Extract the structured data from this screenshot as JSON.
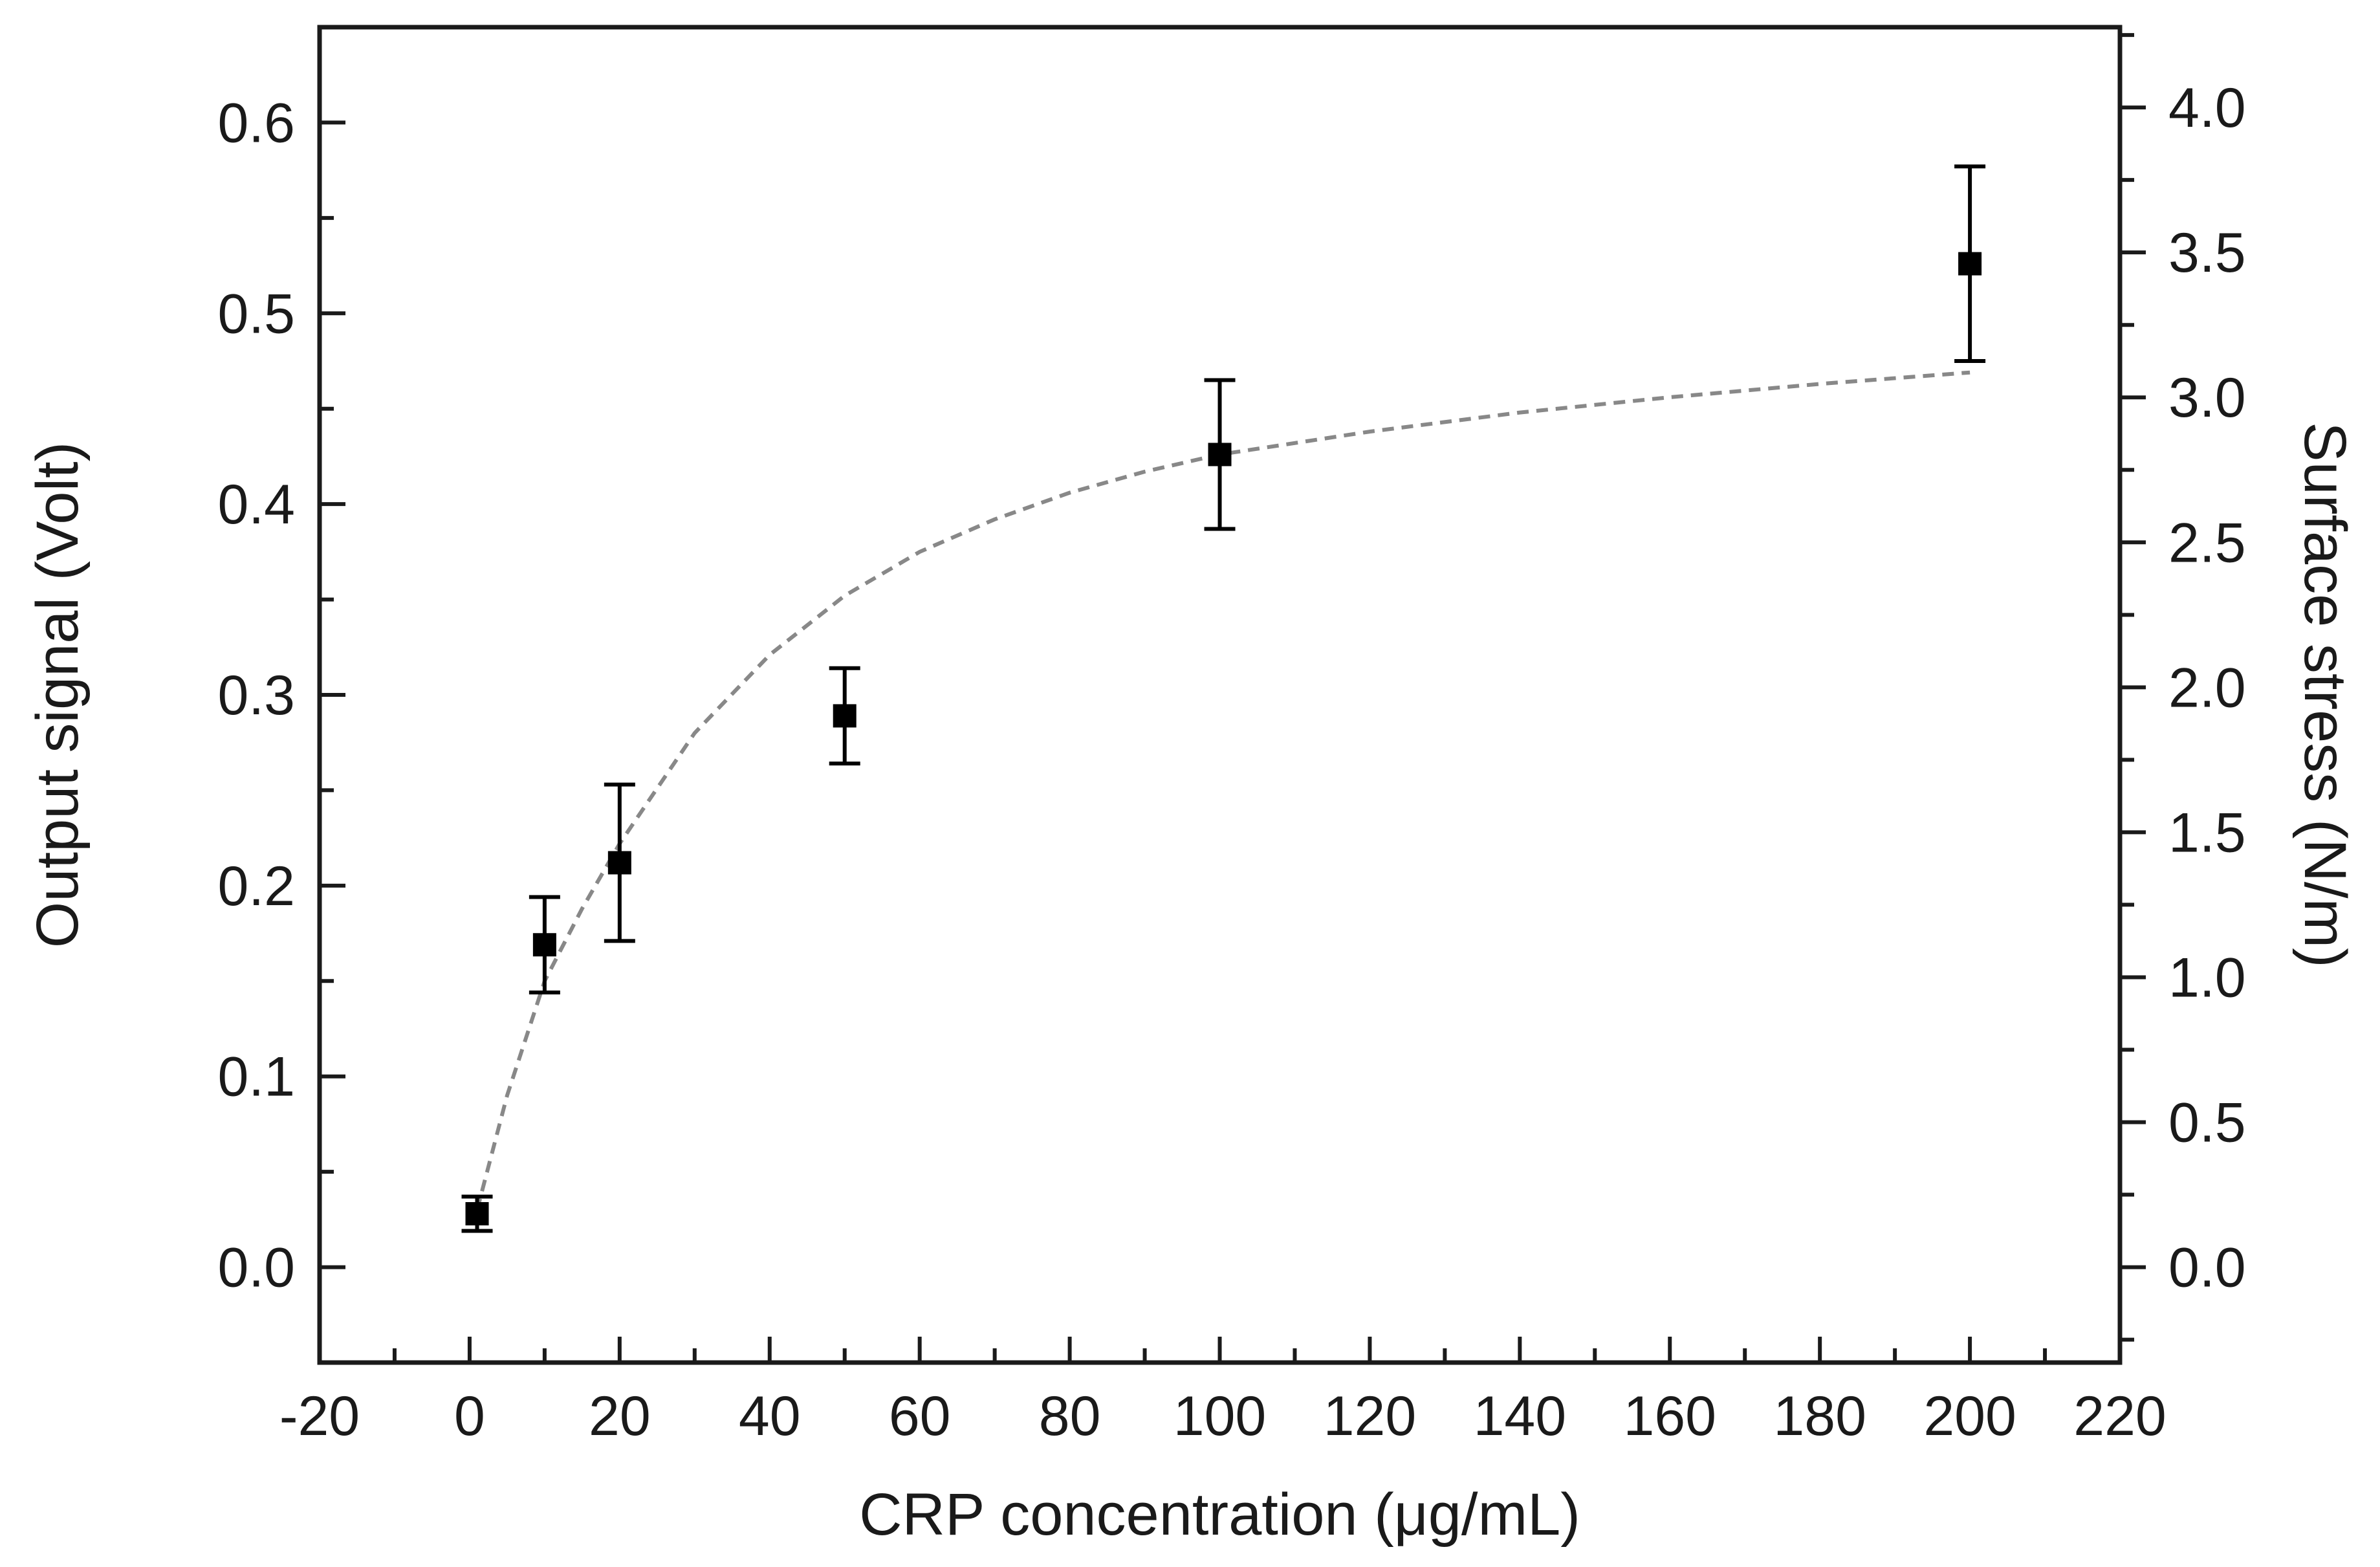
{
  "chart_data": {
    "type": "scatter",
    "title": "",
    "xlabel": "CRP concentration (μg/mL)",
    "ylabel": "Output signal (Volt)",
    "y2label": "Surface stress (N/m)",
    "xlim": [
      -20,
      220
    ],
    "ylim": [
      -0.05,
      0.65
    ],
    "y2lim": [
      -0.329,
      4.277
    ],
    "x_ticks": [
      -20,
      0,
      20,
      40,
      60,
      80,
      100,
      120,
      140,
      160,
      180,
      200,
      220
    ],
    "y_ticks": [
      0.0,
      0.1,
      0.2,
      0.3,
      0.4,
      0.5,
      0.6
    ],
    "y2_ticks": [
      0.0,
      0.5,
      1.0,
      1.5,
      2.0,
      2.5,
      3.0,
      3.5,
      4.0
    ],
    "x_tick_labels": [
      "-20",
      "0",
      "20",
      "40",
      "60",
      "80",
      "100",
      "120",
      "140",
      "160",
      "180",
      "200",
      "220"
    ],
    "y_tick_labels": [
      "0.0",
      "0.1",
      "0.2",
      "0.3",
      "0.4",
      "0.5",
      "0.6"
    ],
    "y2_tick_labels": [
      "0.0",
      "0.5",
      "1.0",
      "1.5",
      "2.0",
      "2.5",
      "3.0",
      "3.5",
      "4.0"
    ],
    "grid": false,
    "series": [
      {
        "marker": "square",
        "color": "#000000",
        "x": [
          1,
          10,
          20,
          50,
          100,
          200
        ],
        "y": [
          0.028,
          0.169,
          0.212,
          0.289,
          0.426,
          0.526
        ],
        "error": [
          0.009,
          0.025,
          0.041,
          0.025,
          0.039,
          0.051
        ]
      }
    ],
    "fit_curve": {
      "style": "dashed",
      "color": "#888888",
      "x": [
        1,
        5,
        10,
        15,
        20,
        30,
        40,
        50,
        60,
        70,
        80,
        90,
        100,
        120,
        140,
        160,
        180,
        200
      ],
      "y": [
        0.03,
        0.09,
        0.15,
        0.188,
        0.222,
        0.28,
        0.321,
        0.352,
        0.375,
        0.392,
        0.406,
        0.417,
        0.426,
        0.438,
        0.448,
        0.456,
        0.463,
        0.469
      ]
    }
  }
}
